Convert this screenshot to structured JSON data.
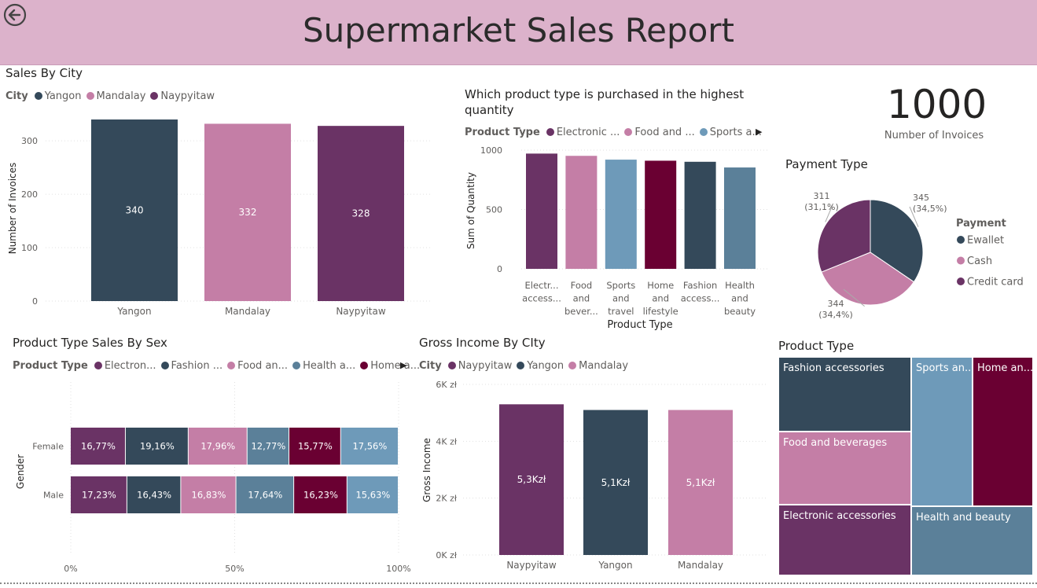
{
  "report": {
    "title": "Supermarket Sales Report"
  },
  "colors": {
    "purple": "#6a3365",
    "navy": "#34495a",
    "pink": "#c47ea6",
    "steel": "#6e9ab9",
    "wine": "#6a0032",
    "slate": "#5b8099"
  },
  "sales_by_city": {
    "title": "Sales By City",
    "legend_label": "City",
    "ylabel": "Number of Invoices",
    "chart_data": {
      "type": "bar",
      "categories": [
        "Yangon",
        "Mandalay",
        "Naypyitaw"
      ],
      "values": [
        340,
        332,
        328
      ],
      "data_labels": [
        "340",
        "332",
        "328"
      ],
      "colors": [
        "#34495a",
        "#c47ea6",
        "#6a3365"
      ],
      "yticks": [
        "0",
        "100",
        "200",
        "300"
      ],
      "ylim": [
        0,
        340
      ],
      "ylabel": "Number of Invoices",
      "grid": true
    }
  },
  "product_quantity": {
    "title_line1": "Which product type is purchased in the highest",
    "title_line2": "quantity",
    "legend_label": "Product Type",
    "legend": [
      "Electronic ...",
      "Food and ...",
      "Sports a..."
    ],
    "legend_colors": [
      "#6a3365",
      "#c47ea6",
      "#6e9ab9"
    ],
    "chart_data": {
      "type": "bar",
      "categories": [
        [
          "Electr...",
          "access..."
        ],
        [
          "Food",
          "and",
          "bever..."
        ],
        [
          "Sports",
          "and",
          "travel"
        ],
        [
          "Home",
          "and",
          "lifestyle"
        ],
        [
          "Fashion",
          "access..."
        ],
        [
          "Health",
          "and",
          "beauty"
        ]
      ],
      "values": [
        971,
        952,
        920,
        911,
        902,
        854
      ],
      "colors": [
        "#6a3365",
        "#c47ea6",
        "#6e9ab9",
        "#6a0032",
        "#34495a",
        "#5b8099"
      ],
      "yticks": [
        "0",
        "500",
        "1000"
      ],
      "ylim": [
        0,
        1000
      ],
      "xlabel": "Product Type",
      "ylabel": "Sum of Quantity",
      "grid": true
    }
  },
  "kpi": {
    "value": "1000",
    "label": "Number of Invoices"
  },
  "payment": {
    "title": "Payment Type",
    "legend_title": "Payment",
    "chart_data": {
      "type": "pie",
      "labels": [
        "Ewallet",
        "Cash",
        "Credit card"
      ],
      "values": [
        345,
        344,
        311
      ],
      "count_labels": [
        "345",
        "344",
        "311"
      ],
      "pct_labels": [
        "(34,5%)",
        "(34,4%)",
        "(31,1%)"
      ],
      "colors": [
        "#34495a",
        "#c47ea6",
        "#6a3365"
      ]
    }
  },
  "sex_sales": {
    "title": "Product Type Sales By Sex",
    "legend_label": "Product Type",
    "legend": [
      "Electron...",
      "Fashion ...",
      "Food an...",
      "Health a...",
      "Home a..."
    ],
    "legend_colors": [
      "#6a3365",
      "#34495a",
      "#c47ea6",
      "#5b8099",
      "#6a0032"
    ],
    "ylabel": "Gender",
    "chart_data": {
      "type": "bar",
      "orientation": "horizontal-stacked-100",
      "categories": [
        "Female",
        "Male"
      ],
      "series_colors": [
        "#6a3365",
        "#34495a",
        "#c47ea6",
        "#5b8099",
        "#6a0032",
        "#6e9ab9"
      ],
      "rows": [
        {
          "values": [
            16.77,
            19.16,
            17.96,
            12.77,
            15.77,
            17.56
          ],
          "labels": [
            "16,77%",
            "19,16%",
            "17,96%",
            "12,77%",
            "15,77%",
            "17,56%"
          ]
        },
        {
          "values": [
            17.23,
            16.43,
            16.83,
            17.64,
            16.23,
            15.63
          ],
          "labels": [
            "17,23%",
            "16,43%",
            "16,83%",
            "17,64%",
            "16,23%",
            "15,63%"
          ]
        }
      ],
      "xticks": [
        "0%",
        "50%",
        "100%"
      ],
      "grid": true
    }
  },
  "gross_income": {
    "title": "Gross Income By CIty",
    "legend_label": "City",
    "ylabel": "Gross Income",
    "chart_data": {
      "type": "bar",
      "categories": [
        "Naypyitaw",
        "Yangon",
        "Mandalay"
      ],
      "values": [
        5300,
        5100,
        5100
      ],
      "data_labels": [
        "5,3Kzł",
        "5,1Kzł",
        "5,1Kzł"
      ],
      "colors": [
        "#6a3365",
        "#34495a",
        "#c47ea6"
      ],
      "yticks": [
        "0K zł",
        "2K zł",
        "4K zł",
        "6K zł"
      ],
      "ylim": [
        0,
        6000
      ],
      "ylabel": "Gross Income",
      "grid": true
    }
  },
  "product_treemap": {
    "title": "Product Type",
    "tiles": [
      {
        "label": "Fashion accessories",
        "color": "#34495a"
      },
      {
        "label": "Food and beverages",
        "color": "#c47ea6"
      },
      {
        "label": "Electronic accessories",
        "color": "#6a3365"
      },
      {
        "label": "Sports an...",
        "color": "#6e9ab9"
      },
      {
        "label": "Home an...",
        "color": "#6a0032"
      },
      {
        "label": "Health and beauty",
        "color": "#5b8099"
      }
    ]
  }
}
